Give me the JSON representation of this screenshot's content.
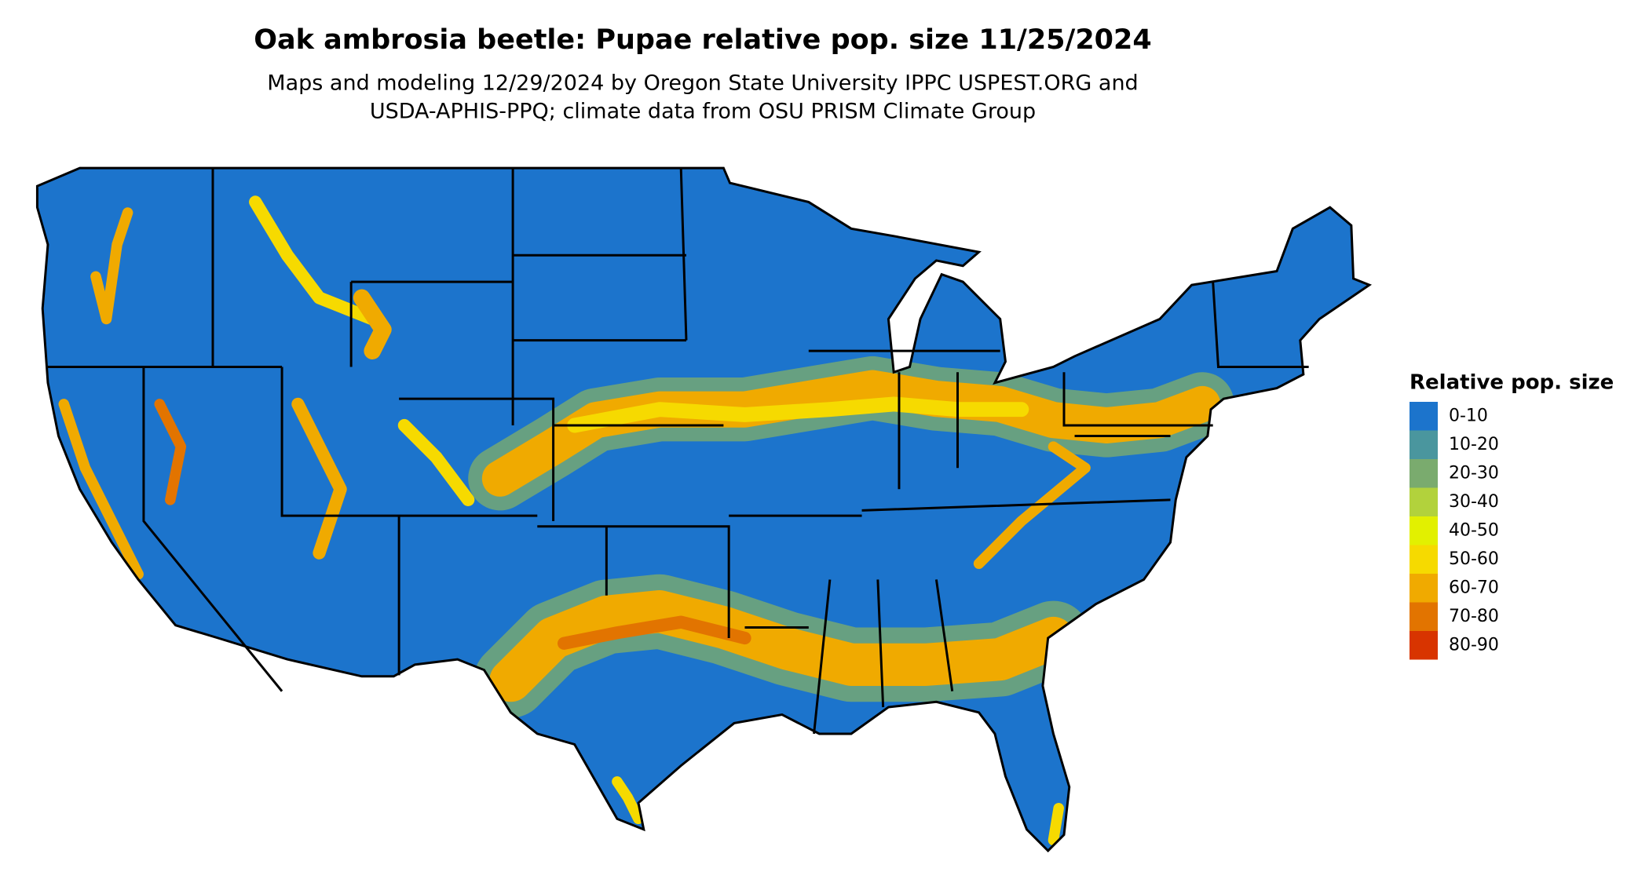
{
  "title": "Oak ambrosia beetle: Pupae relative pop. size 11/25/2024",
  "subtitle": [
    "Maps and modeling 12/29/2024 by Oregon State University IPPC USPEST.ORG and",
    "USDA-APHIS-PPQ; climate data from OSU PRISM Climate Group"
  ],
  "legend": {
    "title": "Relative pop. size",
    "items": [
      {
        "label": "0-10",
        "color": "#1c74cc"
      },
      {
        "label": "10-20",
        "color": "#4a969e"
      },
      {
        "label": "20-30",
        "color": "#7aab6e"
      },
      {
        "label": "30-40",
        "color": "#b2d23c"
      },
      {
        "label": "40-50",
        "color": "#e2f000"
      },
      {
        "label": "50-60",
        "color": "#f6da00"
      },
      {
        "label": "60-70",
        "color": "#f0aa00"
      },
      {
        "label": "70-80",
        "color": "#e27400"
      },
      {
        "label": "80-90",
        "color": "#d83400"
      }
    ]
  }
}
